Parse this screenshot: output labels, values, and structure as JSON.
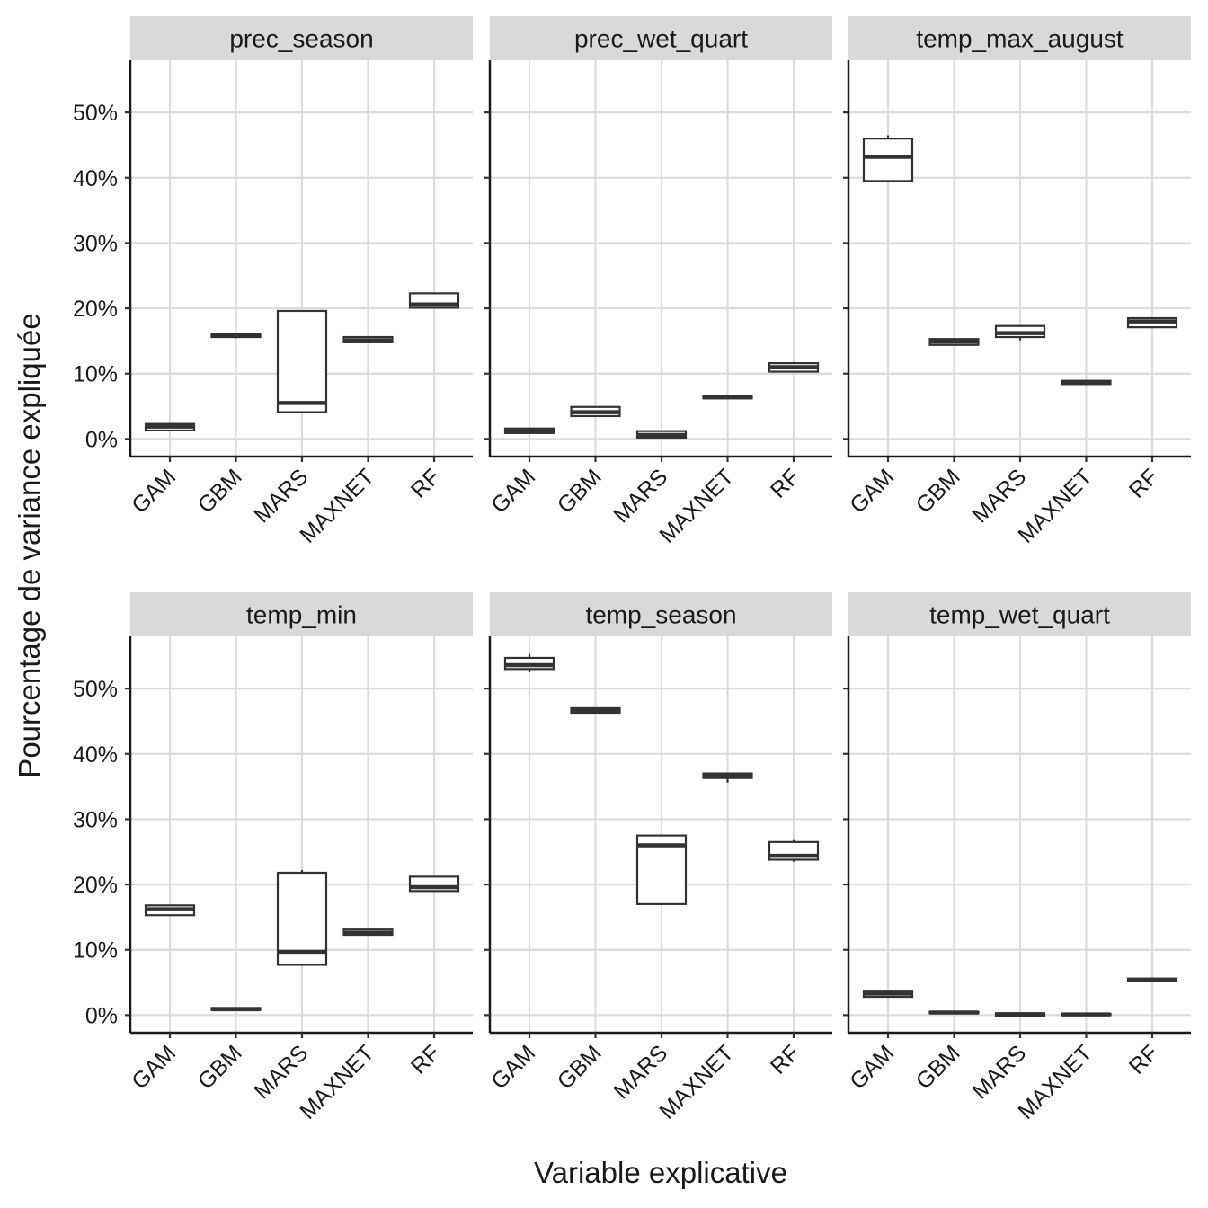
{
  "chart_data": {
    "type": "boxplot",
    "facet_layout": "3 columns x 2 rows",
    "xlabel": "Variable explicative",
    "ylabel": "Pourcentage de variance expliquée",
    "categories": [
      "GAM",
      "GBM",
      "MARS",
      "MAXNET",
      "RF"
    ],
    "y_ticks": [
      0,
      10,
      20,
      30,
      40,
      50
    ],
    "y_tick_labels": [
      "0%",
      "10%",
      "20%",
      "30%",
      "40%",
      "50%"
    ],
    "ylim": [
      -2.7,
      58
    ],
    "grid": true,
    "box_fields": [
      "min",
      "q1",
      "median",
      "q3",
      "max"
    ],
    "panels": [
      {
        "title": "prec_season",
        "boxes": [
          {
            "category": "GAM",
            "min": 1.3,
            "q1": 1.3,
            "median": 1.9,
            "q3": 2.3,
            "max": 2.3
          },
          {
            "category": "GBM",
            "min": 15.4,
            "q1": 15.6,
            "median": 15.9,
            "q3": 16.0,
            "max": 16.2
          },
          {
            "category": "MARS",
            "min": 4.1,
            "q1": 4.1,
            "median": 5.5,
            "q3": 19.6,
            "max": 19.6
          },
          {
            "category": "MAXNET",
            "min": 14.8,
            "q1": 14.8,
            "median": 15.1,
            "q3": 15.6,
            "max": 15.6
          },
          {
            "category": "RF",
            "min": 20.1,
            "q1": 20.1,
            "median": 20.6,
            "q3": 22.3,
            "max": 22.3
          }
        ]
      },
      {
        "title": "prec_wet_quart",
        "boxes": [
          {
            "category": "GAM",
            "min": 0.9,
            "q1": 0.9,
            "median": 1.2,
            "q3": 1.6,
            "max": 1.6
          },
          {
            "category": "GBM",
            "min": 3.5,
            "q1": 3.5,
            "median": 4.1,
            "q3": 4.9,
            "max": 4.9
          },
          {
            "category": "MARS",
            "min": 0.2,
            "q1": 0.2,
            "median": 0.6,
            "q3": 1.2,
            "max": 1.2
          },
          {
            "category": "MAXNET",
            "min": 6.1,
            "q1": 6.2,
            "median": 6.4,
            "q3": 6.6,
            "max": 6.6
          },
          {
            "category": "RF",
            "min": 10.3,
            "q1": 10.3,
            "median": 11.0,
            "q3": 11.6,
            "max": 11.6
          }
        ]
      },
      {
        "title": "temp_max_august",
        "boxes": [
          {
            "category": "GAM",
            "min": 39.5,
            "q1": 39.5,
            "median": 43.2,
            "q3": 46.0,
            "max": 46.5
          },
          {
            "category": "GBM",
            "min": 14.3,
            "q1": 14.4,
            "median": 14.9,
            "q3": 15.3,
            "max": 15.4
          },
          {
            "category": "MARS",
            "min": 15.1,
            "q1": 15.6,
            "median": 16.2,
            "q3": 17.3,
            "max": 17.3
          },
          {
            "category": "MAXNET",
            "min": 8.3,
            "q1": 8.4,
            "median": 8.7,
            "q3": 8.9,
            "max": 9.0
          },
          {
            "category": "RF",
            "min": 17.1,
            "q1": 17.1,
            "median": 18.0,
            "q3": 18.5,
            "max": 18.5
          }
        ]
      },
      {
        "title": "temp_min",
        "boxes": [
          {
            "category": "GAM",
            "min": 15.3,
            "q1": 15.3,
            "median": 16.2,
            "q3": 16.8,
            "max": 16.8
          },
          {
            "category": "GBM",
            "min": 0.7,
            "q1": 0.8,
            "median": 0.9,
            "q3": 1.1,
            "max": 1.2
          },
          {
            "category": "MARS",
            "min": 7.7,
            "q1": 7.7,
            "median": 9.7,
            "q3": 21.8,
            "max": 22.2
          },
          {
            "category": "MAXNET",
            "min": 12.3,
            "q1": 12.3,
            "median": 12.6,
            "q3": 13.1,
            "max": 13.1
          },
          {
            "category": "RF",
            "min": 19.0,
            "q1": 19.0,
            "median": 19.6,
            "q3": 21.2,
            "max": 21.2
          }
        ]
      },
      {
        "title": "temp_season",
        "boxes": [
          {
            "category": "GAM",
            "min": 52.5,
            "q1": 53.0,
            "median": 53.6,
            "q3": 54.7,
            "max": 55.3
          },
          {
            "category": "GBM",
            "min": 46.2,
            "q1": 46.3,
            "median": 46.7,
            "q3": 47.0,
            "max": 47.0
          },
          {
            "category": "MARS",
            "min": 17.0,
            "q1": 17.0,
            "median": 26.0,
            "q3": 27.5,
            "max": 27.5
          },
          {
            "category": "MAXNET",
            "min": 35.6,
            "q1": 36.3,
            "median": 36.6,
            "q3": 37.0,
            "max": 37.0
          },
          {
            "category": "RF",
            "min": 23.5,
            "q1": 23.8,
            "median": 24.4,
            "q3": 26.5,
            "max": 26.8
          }
        ]
      },
      {
        "title": "temp_wet_quart",
        "boxes": [
          {
            "category": "GAM",
            "min": 2.8,
            "q1": 2.8,
            "median": 3.3,
            "q3": 3.6,
            "max": 3.6
          },
          {
            "category": "GBM",
            "min": 0.3,
            "q1": 0.3,
            "median": 0.4,
            "q3": 0.5,
            "max": 0.5
          },
          {
            "category": "MARS",
            "min": -0.2,
            "q1": -0.2,
            "median": 0.0,
            "q3": 0.3,
            "max": 0.3
          },
          {
            "category": "MAXNET",
            "min": 0.0,
            "q1": 0.0,
            "median": 0.1,
            "q3": 0.2,
            "max": 0.2
          },
          {
            "category": "RF",
            "min": 5.2,
            "q1": 5.2,
            "median": 5.4,
            "q3": 5.6,
            "max": 5.6
          }
        ]
      }
    ]
  }
}
